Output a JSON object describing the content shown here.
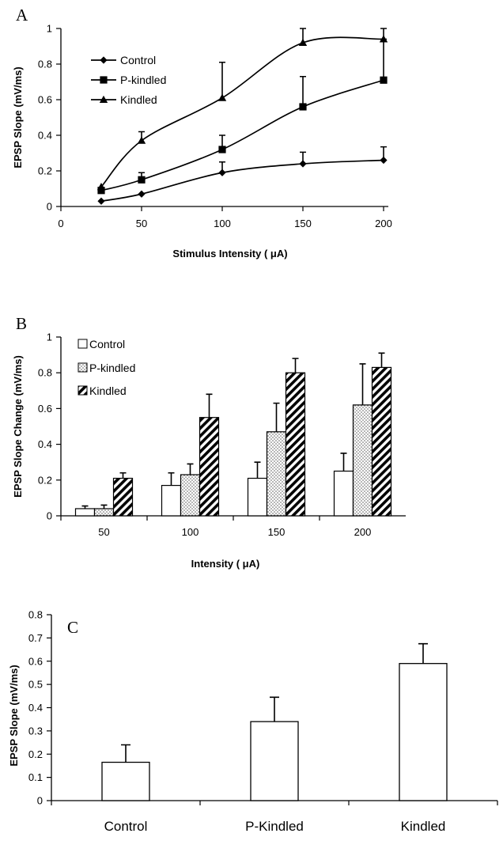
{
  "chart_data": [
    {
      "type": "line",
      "panel_label": "A",
      "xlabel": "Stimulus Intensity ( μA)",
      "ylabel": "EPSP Slope (mV/ms)",
      "xlim": [
        0,
        200
      ],
      "ylim": [
        0,
        1
      ],
      "xticks": [
        0,
        50,
        100,
        150,
        200
      ],
      "xtick_labels": [
        "0",
        "50",
        "100",
        "150",
        "200"
      ],
      "yticks": [
        0,
        0.2,
        0.4,
        0.6,
        0.8,
        1
      ],
      "ytick_labels": [
        "0",
        "0.2",
        "0.4",
        "0.6",
        "0.8",
        "1"
      ],
      "legend_position": "top-left",
      "grid": false,
      "x": [
        25,
        50,
        100,
        150,
        200
      ],
      "series": [
        {
          "name": "Control",
          "marker": "diamond",
          "values": [
            0.03,
            0.07,
            0.19,
            0.24,
            0.26
          ],
          "errors": [
            0,
            0,
            0.06,
            0.065,
            0.075
          ]
        },
        {
          "name": "P-kindled",
          "marker": "square",
          "values": [
            0.09,
            0.15,
            0.32,
            0.56,
            0.71
          ],
          "errors": [
            0,
            0.04,
            0.08,
            0.17,
            0.23
          ]
        },
        {
          "name": "Kindled",
          "marker": "triangle",
          "values": [
            0.11,
            0.37,
            0.61,
            0.92,
            0.94
          ],
          "errors": [
            0,
            0.05,
            0.2,
            0.08,
            0.06
          ]
        }
      ]
    },
    {
      "type": "bar",
      "panel_label": "B",
      "xlabel": "Intensity ( μA)",
      "ylabel": "EPSP Slope Change (mV/ms)",
      "ylim": [
        0,
        1
      ],
      "yticks": [
        0,
        0.2,
        0.4,
        0.6,
        0.8,
        1
      ],
      "ytick_labels": [
        "0",
        "0.2",
        "0.4",
        "0.6",
        "0.8",
        "1"
      ],
      "legend_position": "top-left",
      "grid": false,
      "categories": [
        "50",
        "100",
        "150",
        "200"
      ],
      "series": [
        {
          "name": "Control",
          "pattern": "white",
          "values": [
            0.04,
            0.17,
            0.21,
            0.25
          ],
          "errors": [
            0.015,
            0.07,
            0.09,
            0.1
          ]
        },
        {
          "name": "P-kindled",
          "pattern": "dotted",
          "values": [
            0.04,
            0.23,
            0.47,
            0.62
          ],
          "errors": [
            0.02,
            0.06,
            0.16,
            0.23
          ]
        },
        {
          "name": "Kindled",
          "pattern": "hatched",
          "values": [
            0.21,
            0.55,
            0.8,
            0.83
          ],
          "errors": [
            0.03,
            0.13,
            0.08,
            0.08
          ]
        }
      ]
    },
    {
      "type": "bar",
      "panel_label": "C",
      "ylabel": "EPSP Slope (mV/ms)",
      "ylim": [
        0,
        0.8
      ],
      "yticks": [
        0,
        0.1,
        0.2,
        0.3,
        0.4,
        0.5,
        0.6,
        0.7,
        0.8
      ],
      "ytick_labels": [
        "0",
        "0.1",
        "0.2",
        "0.3",
        "0.4",
        "0.5",
        "0.6",
        "0.7",
        "0.8"
      ],
      "grid": false,
      "categories": [
        "Control",
        "P-Kindled",
        "Kindled"
      ],
      "values": [
        0.165,
        0.34,
        0.59
      ],
      "errors": [
        0.075,
        0.105,
        0.085
      ]
    }
  ]
}
